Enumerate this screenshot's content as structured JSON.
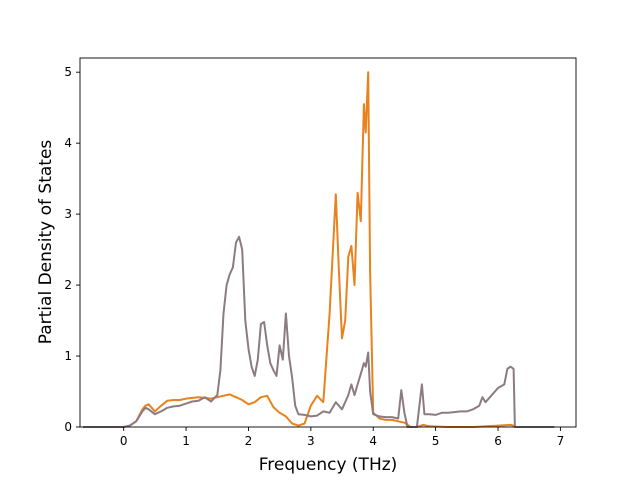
{
  "chart_data": {
    "type": "line",
    "xlabel": "Frequency (THz)",
    "ylabel": "Partial Density of States",
    "xlim": [
      -0.7,
      7.25
    ],
    "ylim": [
      0,
      5.2
    ],
    "xticks": [
      0,
      1,
      2,
      3,
      4,
      5,
      6,
      7
    ],
    "yticks": [
      0,
      1,
      2,
      3,
      4,
      5
    ],
    "grid": false,
    "legend": "none",
    "series": [
      {
        "color": "#e8821e",
        "points": [
          [
            -0.65,
            0
          ],
          [
            0.0,
            0
          ],
          [
            0.1,
            0.02
          ],
          [
            0.2,
            0.08
          ],
          [
            0.3,
            0.25
          ],
          [
            0.35,
            0.3
          ],
          [
            0.4,
            0.32
          ],
          [
            0.5,
            0.22
          ],
          [
            0.6,
            0.3
          ],
          [
            0.7,
            0.37
          ],
          [
            0.8,
            0.38
          ],
          [
            0.9,
            0.38
          ],
          [
            1.0,
            0.4
          ],
          [
            1.1,
            0.41
          ],
          [
            1.2,
            0.42
          ],
          [
            1.3,
            0.41
          ],
          [
            1.4,
            0.4
          ],
          [
            1.5,
            0.42
          ],
          [
            1.6,
            0.44
          ],
          [
            1.7,
            0.46
          ],
          [
            1.8,
            0.42
          ],
          [
            1.9,
            0.38
          ],
          [
            2.0,
            0.32
          ],
          [
            2.1,
            0.35
          ],
          [
            2.2,
            0.42
          ],
          [
            2.3,
            0.44
          ],
          [
            2.4,
            0.28
          ],
          [
            2.5,
            0.2
          ],
          [
            2.6,
            0.15
          ],
          [
            2.7,
            0.05
          ],
          [
            2.8,
            0.02
          ],
          [
            2.9,
            0.05
          ],
          [
            3.0,
            0.3
          ],
          [
            3.1,
            0.44
          ],
          [
            3.2,
            0.35
          ],
          [
            3.3,
            1.6
          ],
          [
            3.4,
            3.28
          ],
          [
            3.45,
            2.2
          ],
          [
            3.5,
            1.25
          ],
          [
            3.55,
            1.5
          ],
          [
            3.6,
            2.4
          ],
          [
            3.65,
            2.55
          ],
          [
            3.7,
            2.0
          ],
          [
            3.75,
            3.3
          ],
          [
            3.8,
            2.9
          ],
          [
            3.85,
            4.55
          ],
          [
            3.88,
            4.15
          ],
          [
            3.92,
            5.0
          ],
          [
            3.95,
            2.2
          ],
          [
            4.0,
            0.2
          ],
          [
            4.1,
            0.12
          ],
          [
            4.2,
            0.1
          ],
          [
            4.3,
            0.1
          ],
          [
            4.4,
            0.08
          ],
          [
            4.5,
            0.06
          ],
          [
            4.6,
            0
          ],
          [
            4.7,
            0
          ],
          [
            4.8,
            0.03
          ],
          [
            4.9,
            0.01
          ],
          [
            5.2,
            0
          ],
          [
            5.6,
            0
          ],
          [
            6.0,
            0.02
          ],
          [
            6.2,
            0.03
          ],
          [
            6.25,
            0.02
          ],
          [
            6.27,
            0
          ],
          [
            6.9,
            0
          ]
        ]
      },
      {
        "color": "#8c7b82",
        "points": [
          [
            -0.65,
            0
          ],
          [
            0.0,
            0
          ],
          [
            0.1,
            0.02
          ],
          [
            0.2,
            0.08
          ],
          [
            0.3,
            0.22
          ],
          [
            0.35,
            0.27
          ],
          [
            0.4,
            0.25
          ],
          [
            0.5,
            0.18
          ],
          [
            0.6,
            0.22
          ],
          [
            0.7,
            0.27
          ],
          [
            0.8,
            0.29
          ],
          [
            0.9,
            0.3
          ],
          [
            1.0,
            0.33
          ],
          [
            1.1,
            0.36
          ],
          [
            1.2,
            0.37
          ],
          [
            1.3,
            0.42
          ],
          [
            1.4,
            0.36
          ],
          [
            1.5,
            0.45
          ],
          [
            1.55,
            0.8
          ],
          [
            1.6,
            1.6
          ],
          [
            1.65,
            2.0
          ],
          [
            1.7,
            2.15
          ],
          [
            1.75,
            2.25
          ],
          [
            1.8,
            2.6
          ],
          [
            1.85,
            2.68
          ],
          [
            1.9,
            2.5
          ],
          [
            1.95,
            1.5
          ],
          [
            2.0,
            1.1
          ],
          [
            2.05,
            0.85
          ],
          [
            2.1,
            0.72
          ],
          [
            2.15,
            0.95
          ],
          [
            2.2,
            1.45
          ],
          [
            2.25,
            1.48
          ],
          [
            2.3,
            1.15
          ],
          [
            2.35,
            0.9
          ],
          [
            2.4,
            0.8
          ],
          [
            2.45,
            0.72
          ],
          [
            2.5,
            1.15
          ],
          [
            2.55,
            0.95
          ],
          [
            2.6,
            1.6
          ],
          [
            2.65,
            1.0
          ],
          [
            2.7,
            0.7
          ],
          [
            2.75,
            0.3
          ],
          [
            2.8,
            0.18
          ],
          [
            2.9,
            0.17
          ],
          [
            3.0,
            0.15
          ],
          [
            3.1,
            0.16
          ],
          [
            3.2,
            0.22
          ],
          [
            3.3,
            0.2
          ],
          [
            3.4,
            0.35
          ],
          [
            3.5,
            0.25
          ],
          [
            3.6,
            0.45
          ],
          [
            3.65,
            0.6
          ],
          [
            3.7,
            0.45
          ],
          [
            3.75,
            0.6
          ],
          [
            3.8,
            0.75
          ],
          [
            3.85,
            0.9
          ],
          [
            3.88,
            0.85
          ],
          [
            3.92,
            1.05
          ],
          [
            3.95,
            0.5
          ],
          [
            4.0,
            0.18
          ],
          [
            4.1,
            0.15
          ],
          [
            4.2,
            0.14
          ],
          [
            4.3,
            0.14
          ],
          [
            4.4,
            0.12
          ],
          [
            4.45,
            0.52
          ],
          [
            4.5,
            0.2
          ],
          [
            4.55,
            0
          ],
          [
            4.7,
            0
          ],
          [
            4.78,
            0.6
          ],
          [
            4.82,
            0.18
          ],
          [
            4.9,
            0.18
          ],
          [
            5.0,
            0.17
          ],
          [
            5.1,
            0.2
          ],
          [
            5.2,
            0.2
          ],
          [
            5.3,
            0.21
          ],
          [
            5.4,
            0.22
          ],
          [
            5.5,
            0.22
          ],
          [
            5.6,
            0.25
          ],
          [
            5.7,
            0.3
          ],
          [
            5.75,
            0.42
          ],
          [
            5.8,
            0.35
          ],
          [
            5.9,
            0.45
          ],
          [
            6.0,
            0.55
          ],
          [
            6.1,
            0.6
          ],
          [
            6.15,
            0.82
          ],
          [
            6.2,
            0.85
          ],
          [
            6.25,
            0.82
          ],
          [
            6.27,
            0
          ],
          [
            6.9,
            0
          ]
        ]
      }
    ]
  }
}
